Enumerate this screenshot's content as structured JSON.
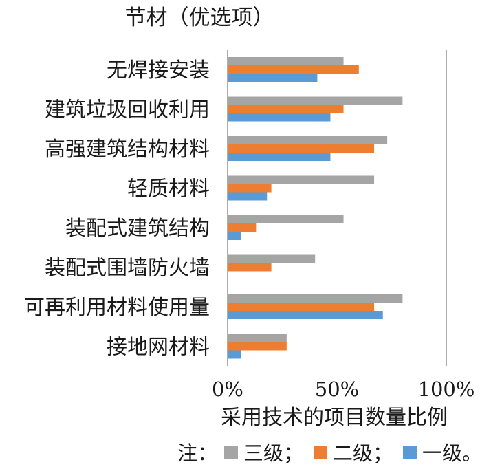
{
  "chart_data": {
    "type": "bar",
    "orientation": "horizontal",
    "title": "节材（优选项）",
    "xlabel": "采用技术的项目数量比例",
    "ylabel": "",
    "xlim": [
      0,
      100
    ],
    "x_ticks": [
      "0%",
      "50%",
      "100%"
    ],
    "categories": [
      "无焊接安装",
      "建筑垃圾回收利用",
      "高强建筑结构材料",
      "轻质材料",
      "装配式建筑结构",
      "装配式围墙防火墙",
      "可再利用材料使用量",
      "接地网材料"
    ],
    "series": [
      {
        "name": "三级",
        "color": "#a5a5a5",
        "values": [
          53,
          80,
          73,
          67,
          53,
          40,
          80,
          27
        ]
      },
      {
        "name": "二级",
        "color": "#ed7d31",
        "values": [
          60,
          53,
          67,
          20,
          13,
          20,
          67,
          27
        ]
      },
      {
        "name": "一级",
        "color": "#5b9bd5",
        "values": [
          41,
          47,
          47,
          18,
          6,
          0,
          71,
          6
        ]
      }
    ],
    "grid": false,
    "legend": {
      "placement": "bottom",
      "prefix": "注：",
      "separator": "；",
      "suffix": "。"
    }
  }
}
